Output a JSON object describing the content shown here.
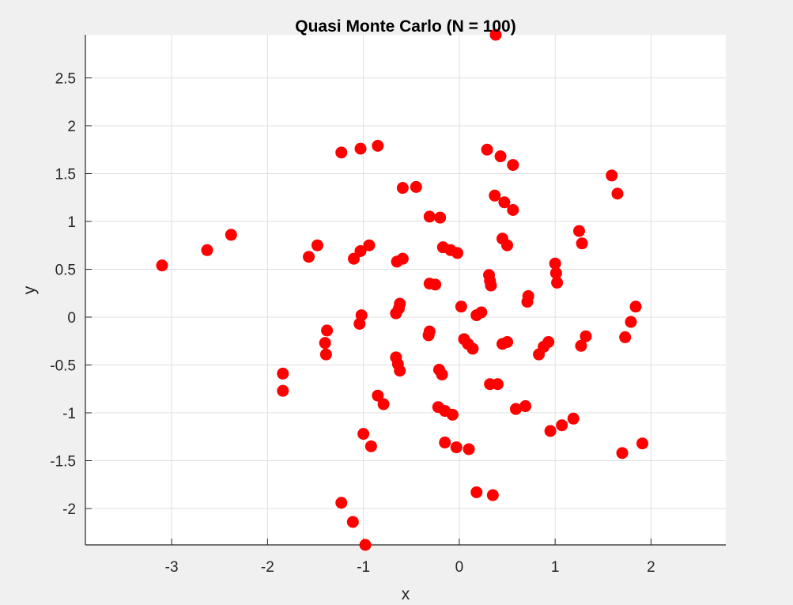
{
  "chart_data": {
    "type": "scatter",
    "title": "Quasi Monte Carlo (N = 100)",
    "xlabel": "x",
    "ylabel": "y",
    "xlim": [
      -3.9,
      2.78
    ],
    "ylim": [
      -2.38,
      2.95
    ],
    "xticks": [
      -3,
      -2,
      -1,
      0,
      1,
      2
    ],
    "yticks": [
      -2,
      -1.5,
      -1,
      -0.5,
      0,
      0.5,
      1,
      1.5,
      2,
      2.5
    ],
    "xtick_labels": [
      "-3",
      "-2",
      "-1",
      "0",
      "1",
      "2"
    ],
    "ytick_labels": [
      "-2",
      "-1.5",
      "-1",
      "-0.5",
      "0",
      "0.5",
      "1",
      "1.5",
      "2",
      "2.5"
    ],
    "grid": true,
    "marker_color": "#ff0000",
    "axes_background": "#ffffff",
    "figure_background": "#f0f0f0",
    "grid_color": "#dfdfdf",
    "points": {
      "x": [
        0.38,
        -1.23,
        -1.03,
        -0.85,
        0.29,
        0.43,
        0.56,
        -0.59,
        -0.45,
        1.59,
        1.65,
        0.37,
        0.47,
        0.56,
        -0.31,
        -0.2,
        1.25,
        1.28,
        -2.38,
        -2.63,
        -3.1,
        -1.48,
        -1.57,
        -1.1,
        -1.03,
        -0.94,
        -0.17,
        -0.09,
        -0.02,
        0.45,
        0.5,
        -0.65,
        -0.59,
        1.0,
        1.01,
        1.02,
        0.31,
        0.32,
        0.33,
        -0.31,
        -0.25,
        1.84,
        0.72,
        0.71,
        -0.62,
        -0.63,
        -0.66,
        0.02,
        1.79,
        0.23,
        0.18,
        -1.02,
        -1.04,
        -1.38,
        -1.4,
        -1.39,
        -0.31,
        -0.32,
        1.32,
        1.73,
        0.05,
        0.09,
        0.14,
        0.5,
        0.45,
        0.93,
        0.88,
        0.83,
        1.27,
        -0.66,
        -0.64,
        -0.62,
        -0.21,
        -0.18,
        0.32,
        0.4,
        -1.84,
        -1.84,
        -0.85,
        -0.79,
        -0.22,
        -0.15,
        -0.07,
        0.59,
        0.69,
        1.19,
        1.07,
        0.95,
        -1.0,
        -0.92,
        -0.15,
        -0.03,
        0.1,
        1.7,
        1.91,
        -1.23,
        -1.11,
        -0.98,
        0.18,
        0.35
      ],
      "y": [
        2.95,
        1.72,
        1.76,
        1.79,
        1.75,
        1.68,
        1.59,
        1.35,
        1.36,
        1.48,
        1.29,
        1.27,
        1.2,
        1.12,
        1.05,
        1.04,
        0.9,
        0.77,
        0.86,
        0.7,
        0.54,
        0.75,
        0.63,
        0.61,
        0.69,
        0.75,
        0.73,
        0.7,
        0.67,
        0.82,
        0.75,
        0.58,
        0.61,
        0.56,
        0.46,
        0.36,
        0.44,
        0.38,
        0.33,
        0.35,
        0.34,
        0.11,
        0.22,
        0.16,
        0.14,
        0.09,
        0.04,
        0.11,
        -0.05,
        0.05,
        0.02,
        0.02,
        -0.07,
        -0.14,
        -0.27,
        -0.39,
        -0.15,
        -0.19,
        -0.2,
        -0.21,
        -0.23,
        -0.28,
        -0.33,
        -0.26,
        -0.28,
        -0.26,
        -0.31,
        -0.39,
        -0.3,
        -0.42,
        -0.49,
        -0.56,
        -0.55,
        -0.6,
        -0.7,
        -0.7,
        -0.59,
        -0.77,
        -0.82,
        -0.91,
        -0.94,
        -0.98,
        -1.02,
        -0.96,
        -0.93,
        -1.06,
        -1.13,
        -1.19,
        -1.22,
        -1.35,
        -1.31,
        -1.36,
        -1.38,
        -1.42,
        -1.32,
        -1.94,
        -2.14,
        -2.38,
        -1.83,
        -1.86
      ]
    }
  }
}
